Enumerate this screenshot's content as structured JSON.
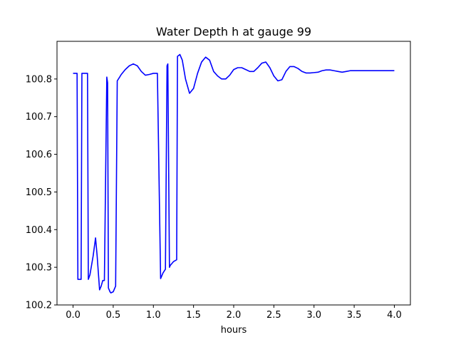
{
  "chart_data": {
    "type": "line",
    "title": "Water Depth h at gauge 99",
    "xlabel": "hours",
    "ylabel": "",
    "xlim": [
      -0.2,
      4.2
    ],
    "ylim": [
      100.2,
      100.9
    ],
    "xticks": [
      0.0,
      0.5,
      1.0,
      1.5,
      2.0,
      2.5,
      3.0,
      3.5,
      4.0
    ],
    "xtick_labels": [
      "0.0",
      "0.5",
      "1.0",
      "1.5",
      "2.0",
      "2.5",
      "3.0",
      "3.5",
      "4.0"
    ],
    "yticks": [
      100.2,
      100.3,
      100.4,
      100.5,
      100.6,
      100.7,
      100.8
    ],
    "ytick_labels": [
      "100.2",
      "100.3",
      "100.4",
      "100.5",
      "100.6",
      "100.7",
      "100.8"
    ],
    "grid": false,
    "series": [
      {
        "color": "#0000ff",
        "x": [
          0.0,
          0.05,
          0.06,
          0.1,
          0.11,
          0.18,
          0.19,
          0.21,
          0.25,
          0.28,
          0.3,
          0.33,
          0.35,
          0.37,
          0.39,
          0.42,
          0.43,
          0.44,
          0.46,
          0.47,
          0.5,
          0.53,
          0.55,
          0.58,
          0.6,
          0.65,
          0.7,
          0.75,
          0.8,
          0.85,
          0.9,
          0.95,
          1.0,
          1.05,
          1.09,
          1.1,
          1.12,
          1.15,
          1.17,
          1.18,
          1.2,
          1.21,
          1.25,
          1.29,
          1.3,
          1.33,
          1.36,
          1.4,
          1.45,
          1.5,
          1.55,
          1.6,
          1.65,
          1.7,
          1.75,
          1.8,
          1.85,
          1.9,
          1.95,
          2.0,
          2.05,
          2.1,
          2.15,
          2.2,
          2.25,
          2.3,
          2.35,
          2.4,
          2.45,
          2.5,
          2.55,
          2.6,
          2.65,
          2.7,
          2.75,
          2.8,
          2.85,
          2.9,
          2.95,
          3.0,
          3.05,
          3.1,
          3.15,
          3.2,
          3.25,
          3.3,
          3.35,
          3.4,
          3.45,
          3.5,
          3.6,
          3.7,
          3.8,
          3.9,
          4.0
        ],
        "y": [
          100.815,
          100.815,
          100.268,
          100.268,
          100.815,
          100.815,
          100.268,
          100.28,
          100.33,
          100.378,
          100.33,
          100.24,
          100.25,
          100.265,
          100.265,
          100.805,
          100.79,
          100.245,
          100.235,
          100.232,
          100.235,
          100.25,
          100.795,
          100.805,
          100.812,
          100.825,
          100.835,
          100.84,
          100.835,
          100.82,
          100.81,
          100.812,
          100.815,
          100.815,
          100.27,
          100.275,
          100.285,
          100.295,
          100.835,
          100.84,
          100.3,
          100.305,
          100.315,
          100.32,
          100.86,
          100.865,
          100.85,
          100.8,
          100.762,
          100.775,
          100.815,
          100.845,
          100.858,
          100.85,
          100.82,
          100.808,
          100.8,
          100.8,
          100.81,
          100.825,
          100.83,
          100.83,
          100.825,
          100.82,
          100.82,
          100.83,
          100.842,
          100.845,
          100.83,
          100.808,
          100.795,
          100.798,
          100.82,
          100.833,
          100.833,
          100.828,
          100.82,
          100.816,
          100.816,
          100.817,
          100.818,
          100.822,
          100.824,
          100.824,
          100.822,
          100.82,
          100.818,
          100.82,
          100.822,
          100.822,
          100.822,
          100.822,
          100.822,
          100.822,
          100.822
        ]
      }
    ]
  }
}
